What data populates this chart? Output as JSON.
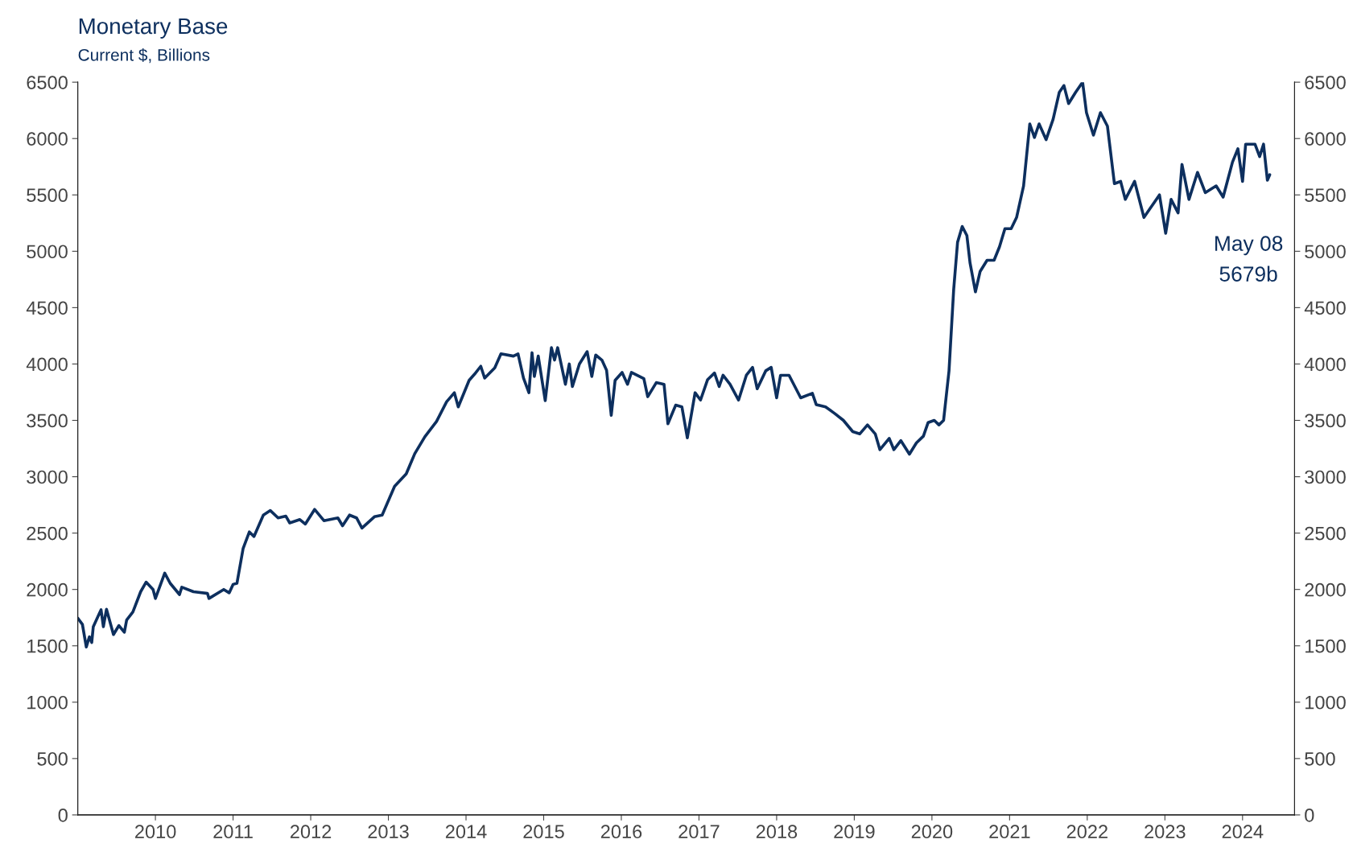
{
  "chart_data": {
    "type": "line",
    "title": "Monetary Base",
    "subtitle": "Current $, Billions",
    "x": [
      2009.0,
      2009.06,
      2009.11,
      2009.15,
      2009.18,
      2009.2,
      2009.3,
      2009.33,
      2009.37,
      2009.46,
      2009.53,
      2009.6,
      2009.63,
      2009.71,
      2009.81,
      2009.88,
      2009.97,
      2010.0,
      2010.12,
      2010.19,
      2010.31,
      2010.34,
      2010.49,
      2010.67,
      2010.69,
      2010.88,
      2010.95,
      2011.0,
      2011.05,
      2011.13,
      2011.21,
      2011.27,
      2011.39,
      2011.48,
      2011.58,
      2011.68,
      2011.73,
      2011.86,
      2011.93,
      2012.05,
      2012.17,
      2012.35,
      2012.41,
      2012.5,
      2012.59,
      2012.66,
      2012.82,
      2012.92,
      2013.08,
      2013.23,
      2013.34,
      2013.47,
      2013.62,
      2013.75,
      2013.85,
      2013.9,
      2014.04,
      2014.11,
      2014.19,
      2014.24,
      2014.37,
      2014.45,
      2014.61,
      2014.67,
      2014.74,
      2014.81,
      2014.85,
      2014.88,
      2014.93,
      2015.02,
      2015.1,
      2015.14,
      2015.18,
      2015.28,
      2015.33,
      2015.37,
      2015.46,
      2015.56,
      2015.62,
      2015.67,
      2015.75,
      2015.81,
      2015.87,
      2015.92,
      2016.01,
      2016.08,
      2016.13,
      2016.29,
      2016.34,
      2016.45,
      2016.55,
      2016.6,
      2016.7,
      2016.78,
      2016.85,
      2016.95,
      2017.02,
      2017.11,
      2017.2,
      2017.26,
      2017.31,
      2017.4,
      2017.51,
      2017.61,
      2017.69,
      2017.75,
      2017.86,
      2017.93,
      2018.0,
      2018.05,
      2018.16,
      2018.31,
      2018.46,
      2018.51,
      2018.63,
      2018.75,
      2018.86,
      2018.98,
      2019.07,
      2019.17,
      2019.27,
      2019.33,
      2019.45,
      2019.51,
      2019.6,
      2019.71,
      2019.8,
      2019.89,
      2019.95,
      2020.03,
      2020.09,
      2020.15,
      2020.22,
      2020.28,
      2020.33,
      2020.39,
      2020.45,
      2020.49,
      2020.56,
      2020.62,
      2020.71,
      2020.8,
      2020.87,
      2020.94,
      2021.02,
      2021.09,
      2021.18,
      2021.26,
      2021.32,
      2021.38,
      2021.47,
      2021.56,
      2021.64,
      2021.7,
      2021.76,
      2021.85,
      2021.94,
      2021.99,
      2022.08,
      2022.17,
      2022.26,
      2022.35,
      2022.43,
      2022.49,
      2022.61,
      2022.73,
      2022.81,
      2022.93,
      2023.01,
      2023.08,
      2023.17,
      2023.22,
      2023.31,
      2023.42,
      2023.52,
      2023.66,
      2023.75,
      2023.87,
      2023.94,
      2024.0,
      2024.04,
      2024.16,
      2024.22,
      2024.27,
      2024.32,
      2024.35
    ],
    "series": [
      {
        "color": "#0d2f5e",
        "values": [
          1745,
          1690,
          1490,
          1580,
          1530,
          1670,
          1820,
          1670,
          1825,
          1600,
          1680,
          1620,
          1730,
          1800,
          1980,
          2065,
          2000,
          1920,
          2145,
          2055,
          1955,
          2020,
          1980,
          1965,
          1920,
          2000,
          1970,
          2045,
          2055,
          2365,
          2510,
          2470,
          2660,
          2700,
          2635,
          2650,
          2590,
          2620,
          2580,
          2710,
          2610,
          2635,
          2565,
          2660,
          2635,
          2545,
          2645,
          2660,
          2915,
          3025,
          3205,
          3355,
          3490,
          3665,
          3745,
          3620,
          3855,
          3910,
          3980,
          3875,
          3965,
          4090,
          4070,
          4090,
          3875,
          3745,
          4100,
          3890,
          4070,
          3675,
          4145,
          4035,
          4145,
          3820,
          4000,
          3800,
          4000,
          4110,
          3890,
          4080,
          4035,
          3945,
          3545,
          3855,
          3925,
          3820,
          3925,
          3870,
          3710,
          3835,
          3820,
          3470,
          3635,
          3620,
          3345,
          3745,
          3680,
          3860,
          3920,
          3800,
          3900,
          3820,
          3680,
          3900,
          3970,
          3780,
          3940,
          3970,
          3700,
          3900,
          3900,
          3700,
          3740,
          3640,
          3620,
          3560,
          3500,
          3400,
          3380,
          3460,
          3380,
          3240,
          3340,
          3240,
          3320,
          3200,
          3300,
          3360,
          3480,
          3500,
          3460,
          3500,
          3940,
          4660,
          5080,
          5220,
          5140,
          4900,
          4640,
          4820,
          4920,
          4920,
          5040,
          5200,
          5200,
          5300,
          5580,
          6130,
          6010,
          6130,
          5990,
          6170,
          6410,
          6470,
          6310,
          6410,
          6500,
          6230,
          6030,
          6230,
          6110,
          5600,
          5620,
          5460,
          5620,
          5300,
          5380,
          5500,
          5160,
          5460,
          5340,
          5770,
          5460,
          5700,
          5520,
          5580,
          5480,
          5790,
          5910,
          5620,
          5950,
          5950,
          5840,
          5950,
          5630,
          5679
        ]
      }
    ],
    "xlim": [
      2009.0,
      2024.67
    ],
    "xticks": [
      2010,
      2011,
      2012,
      2013,
      2014,
      2015,
      2016,
      2017,
      2018,
      2019,
      2020,
      2021,
      2022,
      2023,
      2024
    ],
    "ylim": [
      0,
      6500
    ],
    "yticks": [
      0,
      500,
      1000,
      1500,
      2000,
      2500,
      3000,
      3500,
      4000,
      4500,
      5000,
      5500,
      6000,
      6500
    ],
    "y2lim": [
      0,
      6500
    ],
    "y2ticks": [
      0,
      500,
      1000,
      1500,
      2000,
      2500,
      3000,
      3500,
      4000,
      4500,
      5000,
      5500,
      6000,
      6500
    ],
    "annotations": [
      "May 08\n5679b"
    ],
    "grid": false,
    "legend": false,
    "marker": "none",
    "line_style": "solid"
  }
}
